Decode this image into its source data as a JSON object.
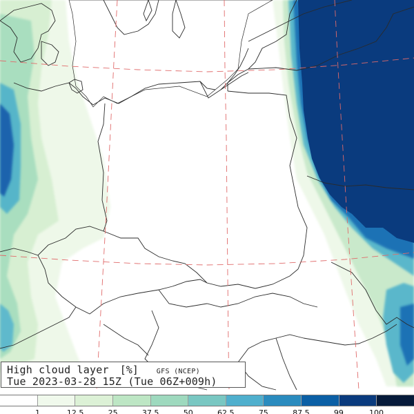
{
  "map": {
    "title": "High cloud layer",
    "unit": "[%]",
    "source": "GFS (NCEP)",
    "valid_time": "Tue 2023-03-28 15Z (Tue 06Z+009h)",
    "colors": {
      "land": "#ffffff",
      "borders": "#2a2a2a",
      "graticule": "#e06a6a"
    }
  },
  "legend": {
    "ticks": [
      "1",
      "12.5",
      "25",
      "37.5",
      "50",
      "62.5",
      "75",
      "87.5",
      "99",
      "100"
    ],
    "colors": [
      "#ffffff",
      "#f0f9ec",
      "#dcf1d6",
      "#bde6c4",
      "#9ed9be",
      "#79c7c2",
      "#4fafcd",
      "#2a8bbe",
      "#0b5fa5",
      "#0a3b7e",
      "#061a3a"
    ]
  }
}
